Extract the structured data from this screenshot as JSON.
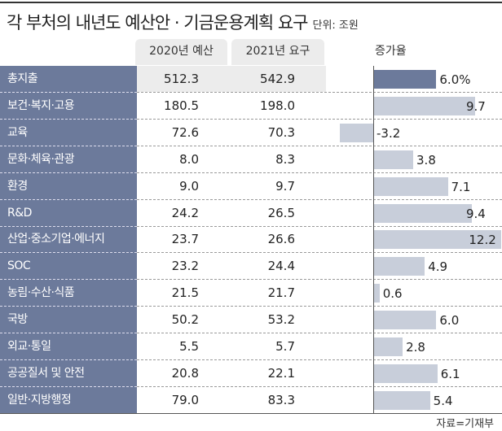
{
  "title": "각 부처의 내년도 예산안 · 기금운용계획 요구",
  "unit": "단위: 조원",
  "source": "자료=기재부",
  "chart_data": {
    "type": "table",
    "title": "각 부처의 내년도 예산안 · 기금운용계획 요구",
    "columns": [
      "2020년 예산",
      "2021년 요구",
      "증가율"
    ],
    "rows": [
      {
        "label": "총지출",
        "v2020": "512.3",
        "v2021": "542.9",
        "growth": 6.0,
        "growth_label": "6.0%"
      },
      {
        "label": "보건·복지·고용",
        "v2020": "180.5",
        "v2021": "198.0",
        "growth": 9.7,
        "growth_label": "9.7"
      },
      {
        "label": "교육",
        "v2020": "72.6",
        "v2021": "70.3",
        "growth": -3.2,
        "growth_label": "-3.2"
      },
      {
        "label": "문화·체육·관광",
        "v2020": "8.0",
        "v2021": "8.3",
        "growth": 3.8,
        "growth_label": "3.8"
      },
      {
        "label": "환경",
        "v2020": "9.0",
        "v2021": "9.7",
        "growth": 7.1,
        "growth_label": "7.1"
      },
      {
        "label": "R&D",
        "v2020": "24.2",
        "v2021": "26.5",
        "growth": 9.4,
        "growth_label": "9.4"
      },
      {
        "label": "산업·중소기업·에너지",
        "v2020": "23.7",
        "v2021": "26.6",
        "growth": 12.2,
        "growth_label": "12.2"
      },
      {
        "label": "SOC",
        "v2020": "23.2",
        "v2021": "24.4",
        "growth": 4.9,
        "growth_label": "4.9"
      },
      {
        "label": "농림·수산·식품",
        "v2020": "21.5",
        "v2021": "21.7",
        "growth": 0.6,
        "growth_label": "0.6"
      },
      {
        "label": "국방",
        "v2020": "50.2",
        "v2021": "53.2",
        "growth": 6.0,
        "growth_label": "6.0"
      },
      {
        "label": "외교·통일",
        "v2020": "5.5",
        "v2021": "5.7",
        "growth": 2.8,
        "growth_label": "2.8"
      },
      {
        "label": "공공질서 및 안전",
        "v2020": "20.8",
        "v2021": "22.1",
        "growth": 6.1,
        "growth_label": "6.1"
      },
      {
        "label": "일반·지방행정",
        "v2020": "79.0",
        "v2021": "83.3",
        "growth": 5.4,
        "growth_label": "5.4"
      }
    ]
  }
}
